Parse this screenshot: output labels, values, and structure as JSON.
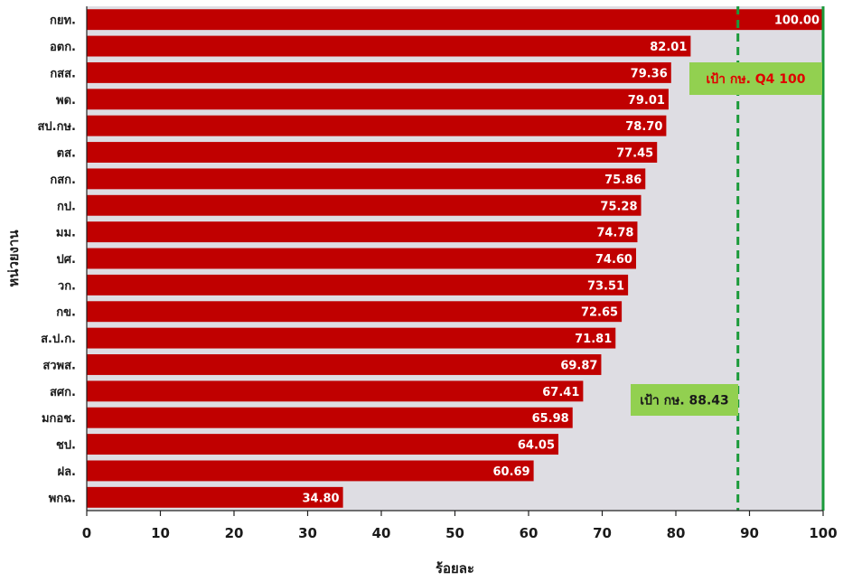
{
  "chart_data": {
    "type": "bar",
    "orientation": "horizontal",
    "categories": [
      "กยท.",
      "อตก.",
      "กสส.",
      "พด.",
      "สป.กษ.",
      "ตส.",
      "กสก.",
      "กป.",
      "มม.",
      "ปศ.",
      "วก.",
      "กข.",
      "ส.ป.ก.",
      "สวพส.",
      "สศก.",
      "มกอช.",
      "ชป.",
      "ฝล.",
      "พกฉ."
    ],
    "values": [
      100.0,
      82.01,
      79.36,
      79.01,
      78.7,
      77.45,
      75.86,
      75.28,
      74.78,
      74.6,
      73.51,
      72.65,
      71.81,
      69.87,
      67.41,
      65.98,
      64.05,
      60.69,
      34.8
    ],
    "data_labels": [
      "100.00",
      "82.01",
      "79.36",
      "79.01",
      "78.70",
      "77.45",
      "75.86",
      "75.28",
      "74.78",
      "74.60",
      "73.51",
      "72.65",
      "71.81",
      "69.87",
      "67.41",
      "65.98",
      "64.05",
      "60.69",
      "34.80"
    ],
    "xlabel": "ร้อยละ",
    "ylabel": "หน่วยงาน",
    "xlim": [
      0,
      100
    ],
    "xticks": [
      0,
      10,
      20,
      30,
      40,
      50,
      60,
      70,
      80,
      90,
      100
    ],
    "grid": false,
    "bar_color": "#c00000",
    "plot_bg": "#dedde3",
    "reference_lines": [
      {
        "value": 88.43,
        "style": "dashed",
        "color": "#1a9a3a",
        "label": "เป้า กษ. 88.43",
        "label_color": "#1a1a1a"
      },
      {
        "value": 100,
        "style": "solid",
        "color": "#1a9a3a",
        "label": "เป้า กษ. Q4 100",
        "label_color": "#e00000"
      }
    ],
    "note_bg": "#92d050"
  }
}
